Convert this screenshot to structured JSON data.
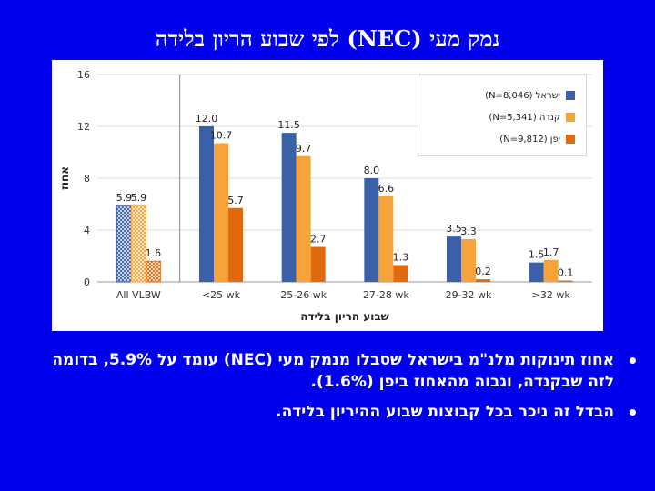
{
  "slide": {
    "title": "נמק מעי (NEC) לפי שבוע הריון בלידה",
    "bullets": [
      "אחוז תינוקות מלנ\"מ בישראל שסבלו מנמק מעי (NEC) עומד על 5.9%, בדומה לזה שבקנדה, וגבוה מהאחוז ביפן (1.6%).",
      "הבדל זה ניכר בכל קבוצות שבוע ההיריון בלידה."
    ]
  },
  "colors": {
    "background": "#0000ee",
    "israel": "#3a61a8",
    "canada": "#f6a33c",
    "japan": "#e2690c"
  },
  "chart_data": {
    "type": "bar",
    "categories": [
      "All VLBW",
      "<25 wk",
      "25-26 wk",
      "27-28 wk",
      "29-32 wk",
      ">32 wk"
    ],
    "series": [
      {
        "name": "ישראל (N=8,046)",
        "values": [
          5.9,
          12.0,
          11.5,
          8.0,
          3.5,
          1.5
        ]
      },
      {
        "name": "קנדה (N=5,341)",
        "values": [
          5.9,
          10.7,
          9.7,
          6.6,
          3.3,
          1.7
        ]
      },
      {
        "name": "יפן (N=9,812)",
        "values": [
          1.6,
          5.7,
          2.7,
          1.3,
          0.2,
          0.1
        ]
      }
    ],
    "value_labels": [
      [
        "5.9",
        "12.0",
        "11.5",
        "8.0",
        "3.5",
        "1.5"
      ],
      [
        "5.9",
        "10.7",
        "9.7",
        "6.6",
        "3.3",
        "1.7"
      ],
      [
        "1.6",
        "5.7",
        "2.7",
        "1.3",
        "0.2",
        "0.1"
      ]
    ],
    "xlabel": "שבוע הריון בלידה",
    "ylabel": "אחוז",
    "ylim": [
      0,
      16
    ],
    "yticks": [
      "0",
      "4",
      "8",
      "12",
      "16"
    ],
    "grid": true,
    "legend": "top-right",
    "note": "first category drawn with hatched fill"
  }
}
